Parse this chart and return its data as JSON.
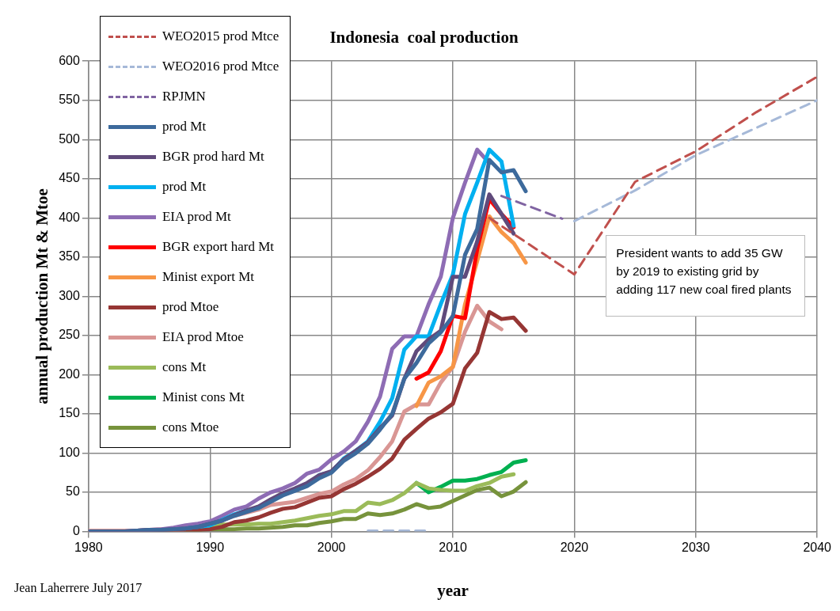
{
  "chart_data": {
    "type": "line",
    "title": "Indonesia  coal production",
    "xlabel": "year",
    "ylabel": "annual production Mt & Mtoe",
    "xlim": [
      1980,
      2040
    ],
    "xticks": [
      1980,
      1990,
      2000,
      2010,
      2020,
      2030,
      2040
    ],
    "ylim": [
      0,
      600
    ],
    "yticks": [
      0,
      50,
      100,
      150,
      200,
      250,
      300,
      350,
      400,
      450,
      500,
      550,
      600
    ],
    "grid": true,
    "legend": "top left",
    "marker": "none",
    "annotations": [
      "President wants to add 35 GW  by 2019 to existing grid by adding 117 new coal fired plants",
      "Jean Laherrere  July 2017"
    ],
    "series": [
      {
        "name": "WEO2015 prod Mtce",
        "color": "#c0504d",
        "line_style": "dashed",
        "x": [
          2013,
          2020,
          2025,
          2030,
          2035,
          2040
        ],
        "values": [
          400,
          328,
          446,
          485,
          535,
          580
        ]
      },
      {
        "name": "WEO2016 prod Mtce",
        "color": "#a6b9d8",
        "line_style": "dashed",
        "x": [
          2003,
          2004,
          2005,
          2006,
          2007,
          2008,
          2010,
          2020,
          2025,
          2030,
          2040
        ],
        "values": [
          1,
          1,
          1,
          1,
          1,
          1,
          null,
          396,
          435,
          480,
          550
        ]
      },
      {
        "name": "RPJMN",
        "color": "#8064a2",
        "line_style": "dashed",
        "x": [
          2014,
          2019
        ],
        "values": [
          428,
          399
        ]
      },
      {
        "name": "prod Mt",
        "color": "#3d6a9c",
        "line_style": "solid",
        "x": [
          1980,
          1981,
          1982,
          1983,
          1984,
          1985,
          1986,
          1987,
          1988,
          1989,
          1990,
          1991,
          1992,
          1993,
          1994,
          1995,
          1996,
          1997,
          1998,
          1999,
          2000,
          2001,
          2002,
          2003,
          2004,
          2005,
          2006,
          2007,
          2008,
          2009,
          2010,
          2011,
          2012,
          2013,
          2014,
          2015,
          2016
        ],
        "values": [
          0,
          0,
          0,
          0,
          1,
          2,
          2,
          3,
          4,
          6,
          10,
          14,
          20,
          25,
          30,
          38,
          46,
          52,
          58,
          68,
          75,
          90,
          100,
          112,
          130,
          150,
          195,
          215,
          240,
          254,
          275,
          353,
          386,
          474,
          458,
          461,
          434
        ]
      },
      {
        "name": "BGR prod hard Mt",
        "color": "#604a7b",
        "line_style": "solid",
        "x": [
          1980,
          1981,
          1982,
          1983,
          1984,
          1985,
          1986,
          1987,
          1988,
          1989,
          1990,
          1991,
          1992,
          1993,
          1994,
          1995,
          1996,
          1997,
          1998,
          1999,
          2000,
          2001,
          2002,
          2003,
          2004,
          2005,
          2006,
          2007,
          2008,
          2009,
          2010,
          2011,
          2012,
          2013,
          2014,
          2015
        ],
        "values": [
          0,
          0,
          0,
          0,
          1,
          2,
          2,
          3,
          4,
          6,
          10,
          14,
          21,
          27,
          32,
          41,
          49,
          55,
          62,
          72,
          77,
          92,
          103,
          114,
          132,
          148,
          195,
          230,
          245,
          256,
          325,
          325,
          370,
          430,
          405,
          380
        ]
      },
      {
        "name": "prod Mt",
        "color": "#00b0f0",
        "line_style": "solid",
        "x": [
          1988,
          1989,
          1990,
          1991,
          1992,
          1993,
          1994,
          1995,
          1996,
          1997,
          1998,
          1999,
          2000,
          2001,
          2002,
          2003,
          2004,
          2005,
          2006,
          2007,
          2008,
          2009,
          2010,
          2011,
          2012,
          2013,
          2014,
          2015
        ],
        "values": [
          4,
          6,
          8,
          15,
          22,
          27,
          30,
          40,
          48,
          53,
          60,
          72,
          76,
          93,
          103,
          115,
          140,
          170,
          232,
          249,
          249,
          290,
          328,
          405,
          445,
          487,
          472,
          390
        ]
      },
      {
        "name": "EIA prod Mt",
        "color": "#8e6cb4",
        "line_style": "solid",
        "x": [
          1980,
          1981,
          1982,
          1983,
          1984,
          1985,
          1986,
          1987,
          1988,
          1989,
          1990,
          1991,
          1992,
          1993,
          1994,
          1995,
          1996,
          1997,
          1998,
          1999,
          2000,
          2001,
          2002,
          2003,
          2004,
          2005,
          2006,
          2007,
          2008,
          2009,
          2010,
          2011,
          2012,
          2013
        ],
        "values": [
          0,
          0,
          0,
          0,
          1,
          2,
          3,
          5,
          8,
          10,
          13,
          20,
          28,
          32,
          42,
          50,
          55,
          62,
          74,
          79,
          92,
          102,
          115,
          140,
          172,
          233,
          249,
          249,
          290,
          325,
          400,
          445,
          487,
          470
        ]
      },
      {
        "name": "BGR export hard  Mt",
        "color": "#ff0000",
        "line_style": "solid",
        "x": [
          2007,
          2008,
          2009,
          2010,
          2011,
          2012,
          2013,
          2014,
          2015
        ],
        "values": [
          195,
          203,
          230,
          275,
          272,
          360,
          424,
          405,
          388
        ]
      },
      {
        "name": "Minist export Mt",
        "color": "#f79646",
        "line_style": "solid",
        "x": [
          2007,
          2008,
          2009,
          2010,
          2011,
          2012,
          2013,
          2014,
          2015,
          2016
        ],
        "values": [
          160,
          190,
          198,
          210,
          290,
          345,
          402,
          382,
          368,
          343
        ]
      },
      {
        "name": "prod Mtoe",
        "color": "#963634",
        "line_style": "solid",
        "x": [
          1980,
          1981,
          1982,
          1983,
          1984,
          1985,
          1986,
          1987,
          1988,
          1989,
          1990,
          1991,
          1992,
          1993,
          1994,
          1995,
          1996,
          1997,
          1998,
          1999,
          2000,
          2001,
          2002,
          2003,
          2004,
          2005,
          2006,
          2007,
          2008,
          2009,
          2010,
          2011,
          2012,
          2013,
          2014,
          2015,
          2016
        ],
        "values": [
          0,
          0,
          0,
          0,
          0,
          1,
          1,
          1,
          2,
          2,
          3,
          6,
          12,
          14,
          18,
          24,
          29,
          31,
          37,
          43,
          45,
          54,
          61,
          70,
          80,
          93,
          117,
          131,
          144,
          152,
          163,
          208,
          228,
          280,
          271,
          273,
          256
        ]
      },
      {
        "name": "EIA prod Mtoe",
        "color": "#d99694",
        "line_style": "solid",
        "x": [
          1980,
          1981,
          1982,
          1983,
          1984,
          1985,
          1986,
          1987,
          1988,
          1989,
          1990,
          1991,
          1992,
          1993,
          1994,
          1995,
          1996,
          1997,
          1998,
          1999,
          2000,
          2001,
          2002,
          2003,
          2004,
          2005,
          2006,
          2007,
          2008,
          2009,
          2010,
          2011,
          2012,
          2013,
          2014
        ],
        "values": [
          1,
          1,
          1,
          1,
          1,
          2,
          3,
          3,
          3,
          4,
          10,
          14,
          20,
          24,
          28,
          34,
          36,
          38,
          43,
          48,
          51,
          60,
          67,
          78,
          95,
          115,
          153,
          162,
          162,
          190,
          210,
          255,
          288,
          268,
          258
        ]
      },
      {
        "name": "cons Mt",
        "color": "#9bbb59",
        "line_style": "solid",
        "x": [
          1990,
          1991,
          1992,
          1993,
          1994,
          1995,
          1996,
          1997,
          1998,
          1999,
          2000,
          2001,
          2002,
          2003,
          2004,
          2005,
          2006,
          2007,
          2008,
          2009,
          2010,
          2011,
          2012,
          2013,
          2014,
          2015
        ],
        "values": [
          8,
          9,
          9,
          9,
          10,
          10,
          12,
          14,
          17,
          20,
          22,
          26,
          26,
          37,
          35,
          40,
          49,
          62,
          55,
          53,
          52,
          52,
          58,
          62,
          70,
          73
        ]
      },
      {
        "name": "Minist cons Mt",
        "color": "#00b050",
        "line_style": "solid",
        "x": [
          2007,
          2008,
          2009,
          2010,
          2011,
          2012,
          2013,
          2014,
          2015,
          2016
        ],
        "values": [
          62,
          50,
          57,
          65,
          65,
          67,
          72,
          76,
          88,
          91
        ]
      },
      {
        "name": "cons Mtoe",
        "color": "#77933c",
        "line_style": "solid",
        "x": [
          1988,
          1989,
          1990,
          1991,
          1992,
          1993,
          1994,
          1995,
          1996,
          1997,
          1998,
          1999,
          2000,
          2001,
          2002,
          2003,
          2004,
          2005,
          2006,
          2007,
          2008,
          2009,
          2010,
          2011,
          2012,
          2013,
          2014,
          2015,
          2016
        ],
        "values": [
          2,
          2,
          3,
          3,
          3,
          4,
          4,
          5,
          6,
          8,
          8,
          11,
          13,
          16,
          16,
          23,
          21,
          23,
          28,
          35,
          30,
          32,
          39,
          46,
          53,
          56,
          45,
          51,
          63
        ]
      }
    ]
  }
}
